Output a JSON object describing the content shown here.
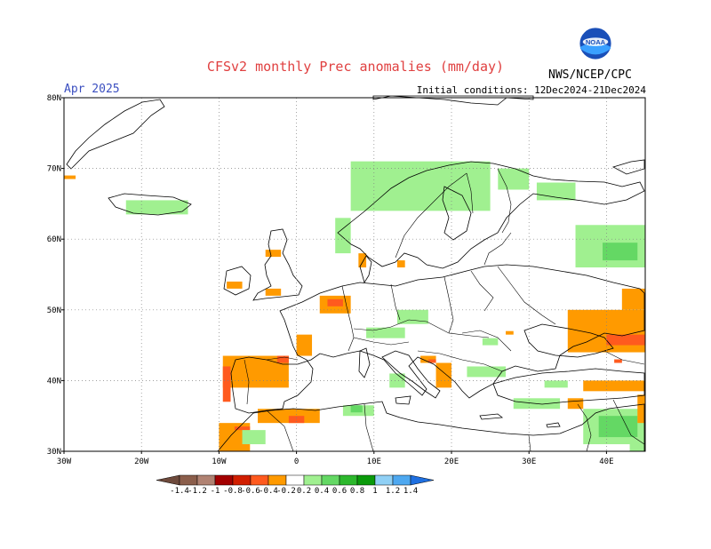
{
  "title": "CFSv2 monthly Prec anomalies (mm/day)",
  "month": "Apr 2025",
  "initial_conditions": "Initial conditions: 12Dec2024-21Dec2024",
  "org": "NWS/NCEP/CPC",
  "logo_text": "NOAA",
  "map": {
    "lon_range": [
      -30,
      45
    ],
    "lat_range": [
      30,
      80
    ],
    "grid": true,
    "lat_ticks": [
      "80N",
      "70N",
      "60N",
      "50N",
      "40N",
      "30N"
    ],
    "lon_ticks": [
      "30W",
      "20W",
      "10W",
      "0",
      "10E",
      "20E",
      "30E",
      "40E"
    ]
  },
  "colorbar": {
    "labels": [
      "-1.4",
      "-1.2",
      "-1",
      "-0.8",
      "-0.6",
      "-0.4",
      "-0.2",
      "0.2",
      "0.4",
      "0.6",
      "0.8",
      "1",
      "1.2",
      "1.4"
    ],
    "colors": [
      "#6e4a3c",
      "#8b5e4b",
      "#b08272",
      "#a30000",
      "#d11e00",
      "#ff5a1e",
      "#ff9a00",
      "#ffffff",
      "#a0f090",
      "#64d864",
      "#2cb82c",
      "#0a9a0a",
      "#90d0f5",
      "#4ea8f0",
      "#1e6fe0"
    ]
  },
  "anomaly_regions": [
    {
      "lon": [
        -30.0,
        -28.5
      ],
      "lat": [
        68.5,
        69.0
      ],
      "color": "#ff9a00"
    },
    {
      "lon": [
        -22.0,
        -14.0
      ],
      "lat": [
        63.5,
        65.5
      ],
      "color": "#a0f090"
    },
    {
      "lon": [
        5.0,
        7.0
      ],
      "lat": [
        58.0,
        63.0
      ],
      "color": "#a0f090"
    },
    {
      "lon": [
        7.0,
        25.0
      ],
      "lat": [
        64.0,
        71.0
      ],
      "color": "#a0f090"
    },
    {
      "lon": [
        26.0,
        30.0
      ],
      "lat": [
        67.0,
        70.0
      ],
      "color": "#a0f090"
    },
    {
      "lon": [
        31.0,
        36.0
      ],
      "lat": [
        65.5,
        68.0
      ],
      "color": "#a0f090"
    },
    {
      "lon": [
        36.0,
        45.0
      ],
      "lat": [
        56.0,
        62.0
      ],
      "color": "#a0f090"
    },
    {
      "lon": [
        39.5,
        44.0
      ],
      "lat": [
        57.0,
        59.5
      ],
      "color": "#64d864"
    },
    {
      "lon": [
        8.0,
        9.0
      ],
      "lat": [
        56.0,
        58.0
      ],
      "color": "#ff9a00"
    },
    {
      "lon": [
        13.0,
        14.0
      ],
      "lat": [
        56.0,
        57.0
      ],
      "color": "#ff9a00"
    },
    {
      "lon": [
        -4.0,
        -2.0
      ],
      "lat": [
        57.5,
        58.5
      ],
      "color": "#ff9a00"
    },
    {
      "lon": [
        -9.0,
        -7.0
      ],
      "lat": [
        53.0,
        54.0
      ],
      "color": "#ff9a00"
    },
    {
      "lon": [
        -4.0,
        -2.0
      ],
      "lat": [
        52.0,
        53.0
      ],
      "color": "#ff9a00"
    },
    {
      "lon": [
        3.0,
        7.0
      ],
      "lat": [
        49.5,
        52.0
      ],
      "color": "#ff9a00"
    },
    {
      "lon": [
        4.0,
        6.0
      ],
      "lat": [
        50.5,
        51.5
      ],
      "color": "#ff5a1e"
    },
    {
      "lon": [
        13.0,
        17.0
      ],
      "lat": [
        48.0,
        50.0
      ],
      "color": "#a0f090"
    },
    {
      "lon": [
        9.0,
        14.0
      ],
      "lat": [
        46.0,
        47.5
      ],
      "color": "#a0f090"
    },
    {
      "lon": [
        0.0,
        2.0
      ],
      "lat": [
        43.5,
        46.5
      ],
      "color": "#ff9a00"
    },
    {
      "lon": [
        -9.5,
        -1.0
      ],
      "lat": [
        39.0,
        43.5
      ],
      "color": "#ff9a00"
    },
    {
      "lon": [
        -9.5,
        -8.5
      ],
      "lat": [
        37.0,
        42.0
      ],
      "color": "#ff5a1e"
    },
    {
      "lon": [
        -2.5,
        -1.0
      ],
      "lat": [
        42.5,
        43.5
      ],
      "color": "#ff5a1e"
    },
    {
      "lon": [
        -5.0,
        3.0
      ],
      "lat": [
        34.0,
        36.0
      ],
      "color": "#ff9a00"
    },
    {
      "lon": [
        -1.0,
        1.0
      ],
      "lat": [
        34.0,
        35.0
      ],
      "color": "#ff5a1e"
    },
    {
      "lon": [
        -10.0,
        -6.0
      ],
      "lat": [
        30.0,
        34.0
      ],
      "color": "#ff9a00"
    },
    {
      "lon": [
        -8.0,
        -6.0
      ],
      "lat": [
        33.0,
        33.5
      ],
      "color": "#ff5a1e"
    },
    {
      "lon": [
        -7.0,
        -4.0
      ],
      "lat": [
        31.0,
        33.0
      ],
      "color": "#a0f090"
    },
    {
      "lon": [
        6.0,
        10.0
      ],
      "lat": [
        35.0,
        36.5
      ],
      "color": "#a0f090"
    },
    {
      "lon": [
        7.0,
        8.5
      ],
      "lat": [
        35.5,
        36.5
      ],
      "color": "#64d864"
    },
    {
      "lon": [
        12.0,
        14.0
      ],
      "lat": [
        39.0,
        41.0
      ],
      "color": "#a0f090"
    },
    {
      "lon": [
        18.0,
        20.0
      ],
      "lat": [
        39.0,
        42.5
      ],
      "color": "#ff9a00"
    },
    {
      "lon": [
        16.0,
        18.0
      ],
      "lat": [
        42.5,
        43.5
      ],
      "color": "#ff9a00"
    },
    {
      "lon": [
        17.0,
        18.0
      ],
      "lat": [
        42.5,
        43.0
      ],
      "color": "#ff5a1e"
    },
    {
      "lon": [
        22.0,
        27.0
      ],
      "lat": [
        40.5,
        42.0
      ],
      "color": "#a0f090"
    },
    {
      "lon": [
        24.0,
        26.0
      ],
      "lat": [
        45.0,
        46.0
      ],
      "color": "#a0f090"
    },
    {
      "lon": [
        27.0,
        28.0
      ],
      "lat": [
        46.5,
        47.0
      ],
      "color": "#ff9a00"
    },
    {
      "lon": [
        35.0,
        45.0
      ],
      "lat": [
        44.0,
        50.0
      ],
      "color": "#ff9a00"
    },
    {
      "lon": [
        42.0,
        45.0
      ],
      "lat": [
        50.0,
        53.0
      ],
      "color": "#ff9a00"
    },
    {
      "lon": [
        40.0,
        45.0
      ],
      "lat": [
        45.0,
        46.5
      ],
      "color": "#ff5a1e"
    },
    {
      "lon": [
        41.0,
        42.0
      ],
      "lat": [
        42.5,
        43.0
      ],
      "color": "#ff5a1e"
    },
    {
      "lon": [
        37.0,
        45.0
      ],
      "lat": [
        38.5,
        40.0
      ],
      "color": "#ff9a00"
    },
    {
      "lon": [
        35.0,
        37.0
      ],
      "lat": [
        36.0,
        37.5
      ],
      "color": "#ff9a00"
    },
    {
      "lon": [
        32.0,
        35.0
      ],
      "lat": [
        39.0,
        40.0
      ],
      "color": "#a0f090"
    },
    {
      "lon": [
        37.0,
        45.0
      ],
      "lat": [
        31.0,
        36.0
      ],
      "color": "#a0f090"
    },
    {
      "lon": [
        39.0,
        44.0
      ],
      "lat": [
        32.0,
        35.0
      ],
      "color": "#64d864"
    },
    {
      "lon": [
        43.0,
        45.0
      ],
      "lat": [
        30.0,
        32.0
      ],
      "color": "#a0f090"
    },
    {
      "lon": [
        44.0,
        45.0
      ],
      "lat": [
        34.0,
        38.0
      ],
      "color": "#ff9a00"
    },
    {
      "lon": [
        28.0,
        34.0
      ],
      "lat": [
        36.0,
        37.5
      ],
      "color": "#a0f090"
    }
  ]
}
